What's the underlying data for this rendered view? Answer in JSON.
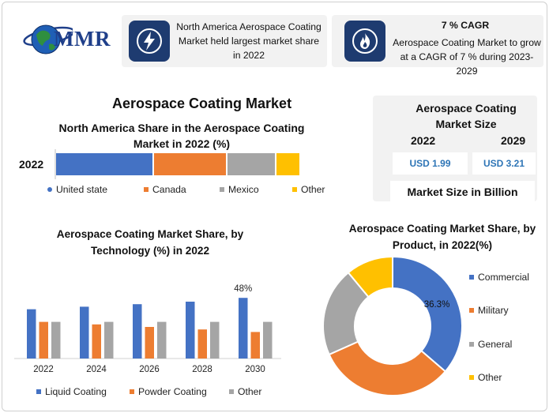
{
  "logo": {
    "text": "MMR"
  },
  "info_cards": [
    {
      "icon": "lightning-bolt-icon",
      "text": "North America Aerospace Coating Market held largest market share in 2022"
    },
    {
      "icon": "flame-icon",
      "title": "7 % CAGR",
      "text": "Aerospace Coating Market to grow at a CAGR of 7 % during 2023-2029"
    }
  ],
  "main_title": "Aerospace Coating Market",
  "market_size": {
    "title": "Aerospace Coating Market Size",
    "year_2022": "2022",
    "year_2029": "2029",
    "value_2022": "USD 1.99",
    "value_2029": "USD 3.21",
    "footer": "Market Size in Billion"
  },
  "colors": {
    "blue": "#4472c4",
    "orange": "#ed7d31",
    "gray": "#a5a5a5",
    "yellow": "#ffc000",
    "navy": "#1e3b70"
  },
  "chart_data": [
    {
      "type": "bar",
      "orientation": "horizontal-stacked",
      "title": "North America Share in the Aerospace Coating Market in 2022 (%)",
      "categories": [
        "2022"
      ],
      "series": [
        {
          "name": "United state",
          "values": [
            40
          ]
        },
        {
          "name": "Canada",
          "values": [
            30
          ]
        },
        {
          "name": "Mexico",
          "values": [
            20
          ]
        },
        {
          "name": "Other",
          "values": [
            10
          ]
        }
      ],
      "legend": "bottom"
    },
    {
      "type": "bar",
      "title": "Aerospace Coating Market Share, by Technology (%) in 2022",
      "categories": [
        "2022",
        "2024",
        "2026",
        "2028",
        "2030"
      ],
      "series": [
        {
          "name": "Liquid Coating",
          "values": [
            39,
            41,
            43,
            45,
            48
          ]
        },
        {
          "name": "Powder Coating",
          "values": [
            29,
            27,
            25,
            23,
            21
          ]
        },
        {
          "name": "Other",
          "values": [
            29,
            29,
            29,
            29,
            29
          ]
        }
      ],
      "data_labels": [
        {
          "category": "2030",
          "series": "Liquid Coating",
          "text": "48%"
        }
      ],
      "legend": "bottom"
    },
    {
      "type": "pie",
      "style": "donut",
      "title": "Aerospace Coating  Market Share, by Product, in 2022(%)",
      "labels": [
        "Commercial",
        "Military",
        "General",
        "Other"
      ],
      "values": [
        36.3,
        32,
        20.7,
        11
      ],
      "data_labels": [
        {
          "label": "Commercial",
          "text": "36.3%"
        }
      ],
      "legend": "right"
    }
  ]
}
